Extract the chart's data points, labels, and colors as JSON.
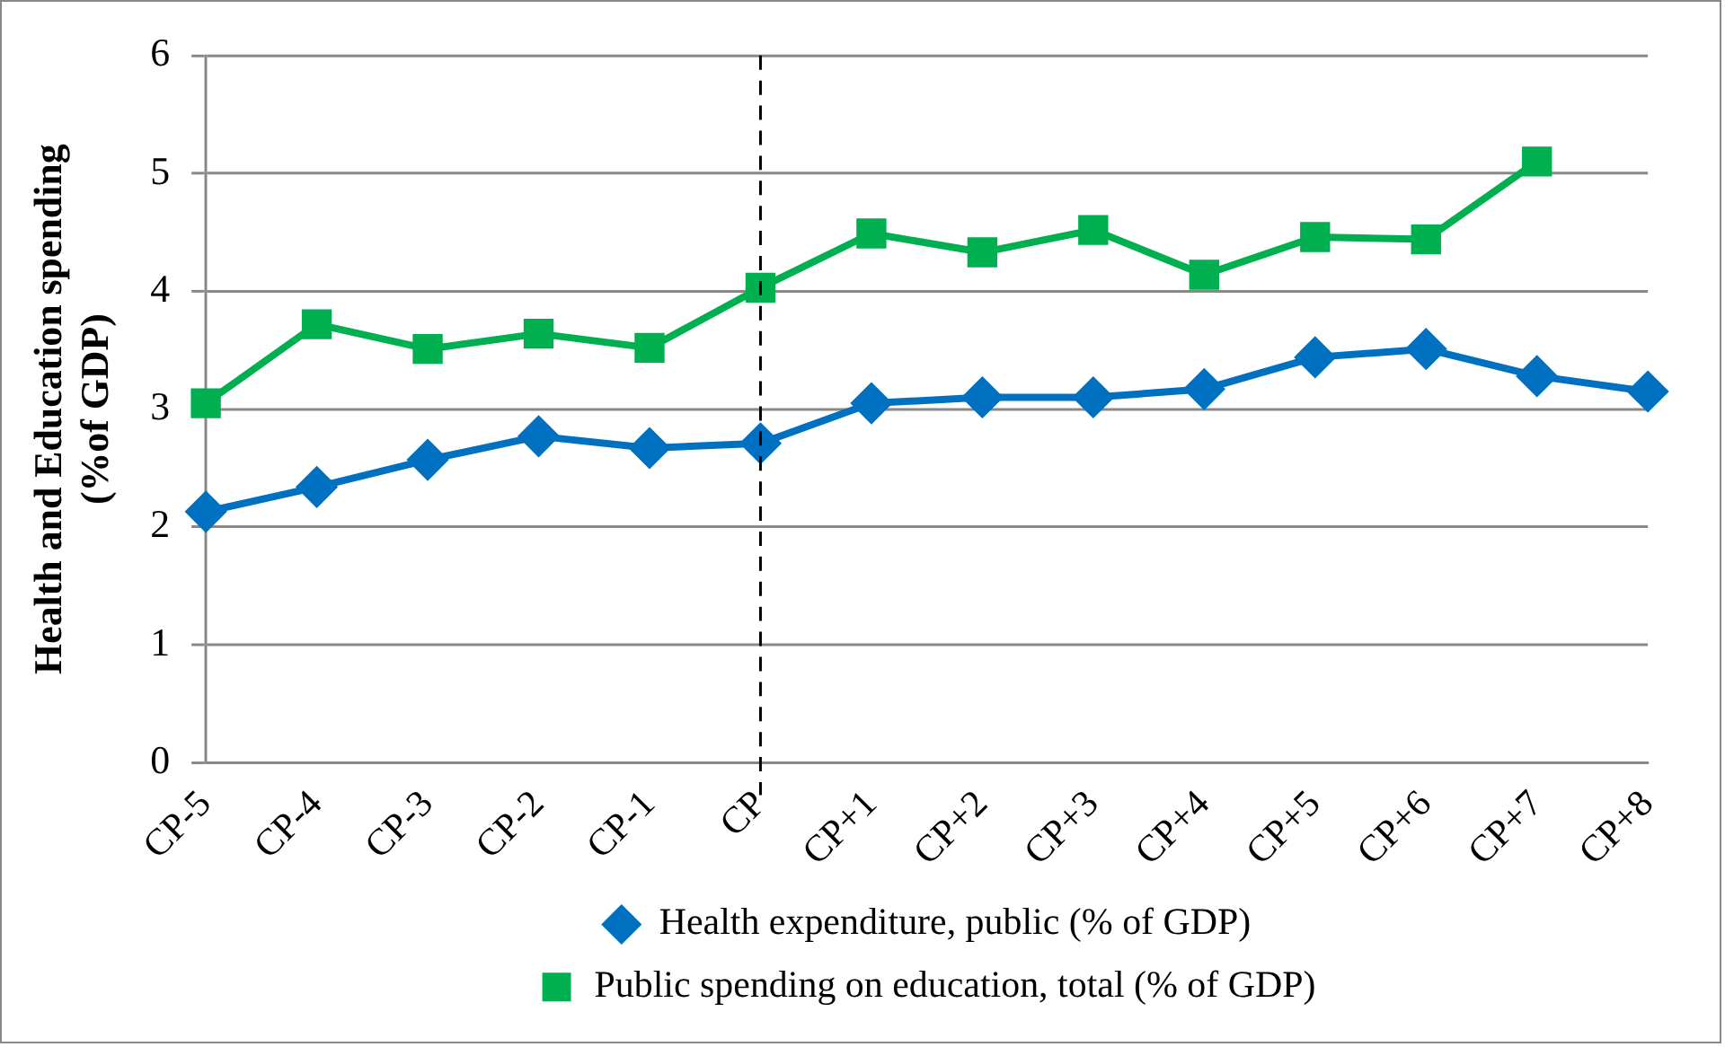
{
  "chart_data": {
    "type": "line",
    "ylabel": "Health and Education spending (%of GDP)",
    "categories": [
      "CP-5",
      "CP-4",
      "CP-3",
      "CP-2",
      "CP-1",
      "CP",
      "CP+1",
      "CP+2",
      "CP+3",
      "CP+4",
      "CP+5",
      "CP+6",
      "CP+7",
      "CP+8"
    ],
    "series": [
      {
        "name": "Health expenditure, public (% of GDP)",
        "color": "#0070c0",
        "marker": "diamond",
        "values": [
          2.13,
          2.34,
          2.57,
          2.77,
          2.67,
          2.71,
          3.05,
          3.1,
          3.1,
          3.17,
          3.44,
          3.51,
          3.28,
          3.15
        ]
      },
      {
        "name": "Public spending on education, total (% of GDP)",
        "color": "#00b050",
        "marker": "square",
        "values": [
          3.05,
          3.72,
          3.51,
          3.64,
          3.52,
          4.03,
          4.49,
          4.33,
          4.52,
          4.14,
          4.46,
          4.44,
          5.1,
          null
        ]
      }
    ],
    "ylim": [
      0,
      6
    ],
    "yticks": [
      0,
      1,
      2,
      3,
      4,
      5,
      6
    ],
    "grid": "y",
    "legend": "bottom",
    "line_style": "solid",
    "ref_lines": [
      {
        "axis": "x",
        "value": "CP",
        "color": "#000000",
        "line_style": "dashed"
      }
    ]
  }
}
